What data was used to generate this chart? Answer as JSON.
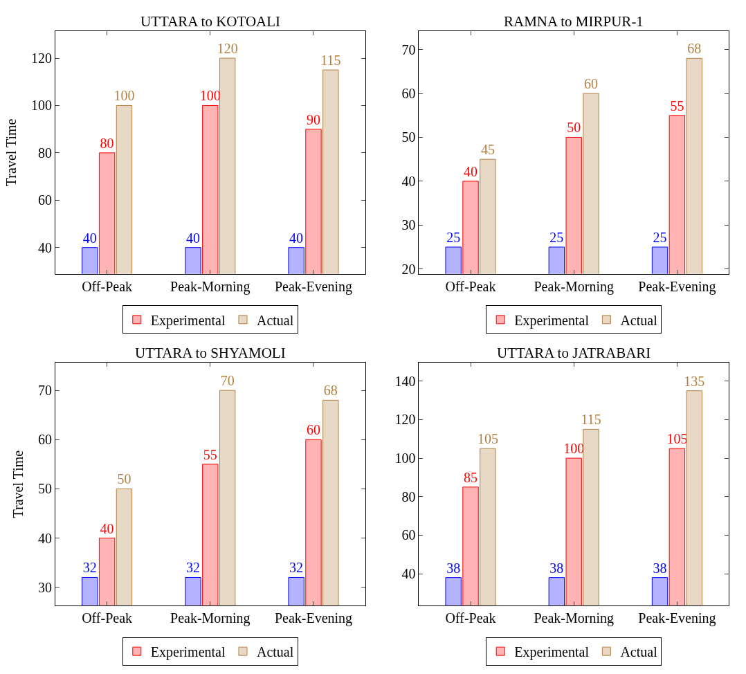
{
  "chart_data": [
    {
      "type": "bar",
      "title": "UTTARA to KOTOALI",
      "ylabel": "Travel Time",
      "categories": [
        "Off-Peak",
        "Peak-Morning",
        "Peak-Evening"
      ],
      "series": [
        {
          "color": "#b3b3ff",
          "values": [
            40,
            40,
            40
          ]
        },
        {
          "name": "Experimental",
          "color": "#ffb3b3",
          "values": [
            80,
            100,
            90
          ]
        },
        {
          "name": "Actual",
          "color": "#e8d9c6",
          "values": [
            100,
            120,
            115
          ]
        }
      ],
      "ylim": [
        28.9,
        131.4
      ],
      "yticks": [
        40,
        60,
        80,
        100,
        120
      ],
      "data_labels": true,
      "legend": "bottom"
    },
    {
      "type": "bar",
      "title": "RAMNA to MIRPUR-1",
      "categories": [
        "Off-Peak",
        "Peak-Morning",
        "Peak-Evening"
      ],
      "series": [
        {
          "color": "#b3b3ff",
          "values": [
            25,
            25,
            25
          ]
        },
        {
          "name": "Experimental",
          "color": "#ffb3b3",
          "values": [
            40,
            50,
            55
          ]
        },
        {
          "name": "Actual",
          "color": "#e8d9c6",
          "values": [
            45,
            60,
            68
          ]
        }
      ],
      "ylim": [
        18.9,
        74.2
      ],
      "yticks": [
        20,
        30,
        40,
        50,
        60,
        70
      ],
      "data_labels": true,
      "legend": "bottom"
    },
    {
      "type": "bar",
      "title": "UTTARA to SHYAMOLI",
      "ylabel": "Travel Time",
      "categories": [
        "Off-Peak",
        "Peak-Morning",
        "Peak-Evening"
      ],
      "series": [
        {
          "color": "#b3b3ff",
          "values": [
            32,
            32,
            32
          ]
        },
        {
          "name": "Experimental",
          "color": "#ffb3b3",
          "values": [
            40,
            55,
            60
          ]
        },
        {
          "name": "Actual",
          "color": "#e8d9c6",
          "values": [
            50,
            70,
            68
          ]
        }
      ],
      "ylim": [
        26.3,
        75.6
      ],
      "yticks": [
        30,
        40,
        50,
        60,
        70
      ],
      "data_labels": true,
      "legend": "bottom"
    },
    {
      "type": "bar",
      "title": "UTTARA to JATRABARI",
      "categories": [
        "Off-Peak",
        "Peak-Morning",
        "Peak-Evening"
      ],
      "series": [
        {
          "color": "#b3b3ff",
          "values": [
            38,
            38,
            38
          ]
        },
        {
          "name": "Experimental",
          "color": "#ffb3b3",
          "values": [
            85,
            100,
            105
          ]
        },
        {
          "name": "Actual",
          "color": "#e8d9c6",
          "values": [
            105,
            115,
            135
          ]
        }
      ],
      "ylim": [
        23.5,
        149.5
      ],
      "yticks": [
        40,
        60,
        80,
        100,
        120,
        140
      ],
      "data_labels": true,
      "legend": "bottom"
    }
  ]
}
